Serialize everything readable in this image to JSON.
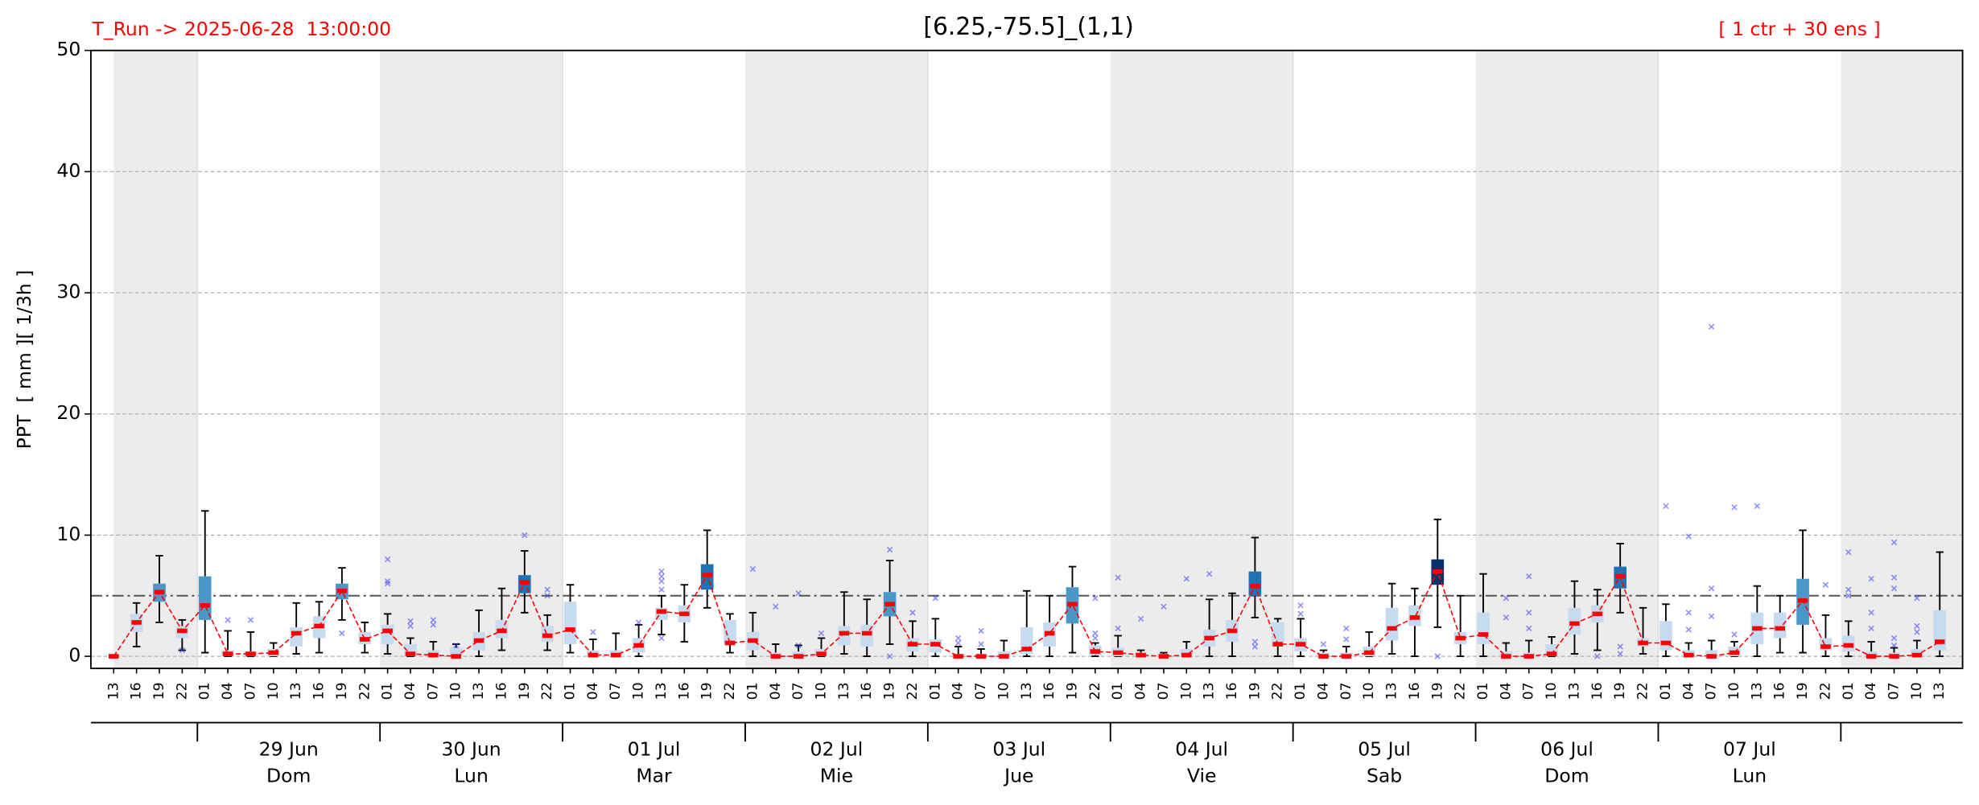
{
  "chart_data": {
    "type": "box",
    "title": "[6.25,-75.5]_(1,1)",
    "annotation_left": "T_Run -> 2025-06-28  13:00:00",
    "annotation_right": "[ 1 ctr + 30 ens ]",
    "ylabel": "PPT  [ mm ][ 1/3h ]",
    "categories": [
      "13",
      "16",
      "19",
      "22",
      "01",
      "04",
      "07",
      "10",
      "13",
      "16",
      "19",
      "22",
      "01",
      "04",
      "07",
      "10",
      "13",
      "16",
      "19",
      "22",
      "01",
      "04",
      "07",
      "10",
      "13",
      "16",
      "19",
      "22",
      "01",
      "04",
      "07",
      "10",
      "13",
      "16",
      "19",
      "22",
      "01",
      "04",
      "07",
      "10",
      "13",
      "16",
      "19",
      "22",
      "01",
      "04",
      "07",
      "10",
      "13",
      "16",
      "19",
      "22",
      "01",
      "04",
      "07",
      "10",
      "13",
      "16",
      "19",
      "22",
      "01",
      "04",
      "07",
      "10",
      "13",
      "16",
      "19",
      "22",
      "01",
      "04",
      "07",
      "10",
      "13",
      "16",
      "19",
      "22",
      "01",
      "04",
      "07",
      "10",
      "13"
    ],
    "day_labels": [
      null,
      "29 Jun",
      "30 Jun",
      "01 Jul",
      "02 Jul",
      "03 Jul",
      "04 Jul",
      "05 Jul",
      "06 Jul",
      "07 Jul",
      null
    ],
    "weekdays": [
      null,
      "Dom",
      "Lun",
      "Mar",
      "Mie",
      "Jue",
      "Vie",
      "Sab",
      "Dom",
      "Lun",
      null
    ],
    "ylim": [
      -1,
      50
    ],
    "yticks": [
      0,
      10,
      20,
      30,
      40,
      50
    ],
    "grid": true,
    "threshold": 5,
    "control": {
      "color": "#ff0000",
      "values": [
        0,
        2.8,
        5.3,
        2.1,
        4.2,
        0.2,
        0.2,
        0.3,
        1.9,
        2.5,
        5.4,
        1.4,
        2.1,
        0.2,
        0.1,
        0,
        1.3,
        2.1,
        6.1,
        1.7,
        2.2,
        0.1,
        0.1,
        0.9,
        3.7,
        3.5,
        6.7,
        1.1,
        1.3,
        0,
        0,
        0.2,
        1.9,
        1.9,
        4.3,
        1.0,
        1.0,
        0,
        0,
        0,
        0.6,
        1.9,
        4.3,
        0.4,
        0.3,
        0.1,
        0,
        0.1,
        1.5,
        2.1,
        5.8,
        1.0,
        1.0,
        0,
        0,
        0.3,
        2.3,
        3.2,
        7.0,
        1.5,
        1.8,
        0,
        0,
        0.2,
        2.7,
        3.5,
        6.6,
        1.1,
        1.1,
        0.1,
        0,
        0.3,
        2.3,
        2.3,
        4.6,
        0.8,
        0.9,
        0,
        0,
        0.1,
        1.2
      ]
    },
    "boxes": {
      "q1": [
        0,
        2.0,
        4.5,
        1.5,
        3.0,
        0,
        0,
        0,
        0.8,
        1.5,
        4.7,
        1.0,
        1.0,
        0,
        0,
        0,
        0.5,
        1.5,
        5.2,
        1.2,
        1.0,
        0,
        0,
        0.3,
        3.0,
        2.8,
        5.5,
        1.0,
        0.5,
        0,
        0,
        0,
        0.9,
        0.8,
        3.3,
        0.4,
        0.3,
        0,
        0,
        0,
        0.2,
        0.8,
        2.7,
        0.1,
        0,
        0,
        0,
        0,
        0.8,
        1.2,
        5.0,
        0.8,
        0.4,
        0,
        0,
        0,
        1.3,
        2.5,
        5.9,
        1.0,
        1.0,
        0,
        0,
        0,
        1.8,
        2.8,
        5.6,
        0.8,
        0.5,
        0,
        0,
        0,
        1.0,
        1.5,
        2.6,
        0.5,
        0.4,
        0,
        0,
        0,
        0.5
      ],
      "q3": [
        0,
        3.5,
        6.0,
        2.5,
        6.6,
        0.5,
        0.4,
        0.6,
        2.4,
        3.3,
        6.0,
        2.0,
        2.6,
        1.0,
        0.5,
        0.7,
        2.0,
        3.0,
        6.7,
        2.5,
        4.5,
        0.5,
        0.5,
        1.5,
        4.0,
        4.2,
        7.6,
        3.0,
        2.0,
        0.3,
        0.4,
        0.6,
        2.5,
        2.6,
        5.3,
        1.5,
        1.4,
        0.2,
        0.2,
        0.4,
        2.4,
        2.8,
        5.7,
        0.9,
        0.7,
        0.3,
        0.2,
        0.6,
        2.2,
        3.0,
        7.0,
        2.8,
        1.5,
        0.3,
        0.3,
        0.8,
        4.0,
        4.2,
        8.0,
        2.0,
        3.6,
        0.4,
        0.3,
        1.0,
        4.0,
        4.2,
        7.4,
        1.5,
        2.9,
        0.5,
        0.5,
        0.8,
        3.6,
        3.6,
        6.4,
        1.5,
        1.7,
        0.4,
        0.3,
        0.6,
        3.8
      ],
      "whislo": [
        0,
        0.8,
        2.8,
        0.5,
        0.3,
        0,
        0,
        0,
        0.2,
        0.3,
        3.0,
        0.3,
        0.2,
        0,
        0,
        0,
        0,
        0.5,
        3.6,
        0.5,
        0.3,
        0,
        0,
        0,
        1.8,
        1.2,
        4.0,
        0.3,
        0,
        0,
        0,
        0,
        0.2,
        0,
        1.0,
        0,
        0,
        0,
        0,
        0,
        0,
        0,
        0.3,
        0,
        0,
        0,
        0,
        0,
        0,
        0,
        3.2,
        0,
        0,
        0,
        0,
        0,
        0.2,
        0,
        2.4,
        0,
        0,
        0,
        0,
        0,
        0.2,
        0.5,
        3.6,
        0.2,
        0,
        0,
        0,
        0,
        0,
        0.3,
        0.3,
        0,
        0,
        0,
        0,
        0,
        0
      ],
      "whishi": [
        0,
        4.4,
        8.3,
        3.0,
        12.0,
        2.1,
        2.0,
        1.1,
        4.4,
        4.5,
        7.3,
        2.8,
        3.5,
        1.5,
        1.2,
        1.0,
        3.8,
        5.6,
        8.7,
        3.4,
        5.9,
        1.4,
        1.9,
        2.6,
        5.0,
        5.9,
        10.4,
        3.5,
        3.6,
        1.0,
        0.9,
        1.5,
        5.3,
        4.7,
        7.9,
        2.9,
        3.1,
        0.8,
        0.6,
        1.3,
        5.4,
        5.0,
        7.4,
        1.1,
        1.7,
        0.5,
        0.3,
        1.2,
        4.7,
        5.2,
        9.8,
        3.1,
        3.1,
        0.5,
        0.8,
        2.0,
        6.0,
        5.6,
        11.3,
        5.0,
        6.8,
        1.1,
        1.3,
        1.6,
        6.2,
        5.5,
        9.3,
        4.0,
        4.3,
        1.1,
        1.3,
        1.2,
        5.8,
        5.0,
        10.4,
        3.4,
        2.9,
        1.2,
        0.7,
        1.3,
        8.6
      ],
      "colors": [
        "#c6dbef",
        "#c6dbef",
        "#4a98c9",
        "#c6dbef",
        "#4a98c9",
        "#c6dbef",
        "#c6dbef",
        "#c6dbef",
        "#c6dbef",
        "#c6dbef",
        "#4a98c9",
        "#c6dbef",
        "#c6dbef",
        "#c6dbef",
        "#c6dbef",
        "#c6dbef",
        "#c6dbef",
        "#c6dbef",
        "#2171b5",
        "#c6dbef",
        "#c6dbef",
        "#c6dbef",
        "#c6dbef",
        "#c6dbef",
        "#c6dbef",
        "#c6dbef",
        "#2171b5",
        "#c6dbef",
        "#c6dbef",
        "#c6dbef",
        "#c6dbef",
        "#c6dbef",
        "#c6dbef",
        "#c6dbef",
        "#4a98c9",
        "#c6dbef",
        "#c6dbef",
        "#c6dbef",
        "#c6dbef",
        "#c6dbef",
        "#c6dbef",
        "#c6dbef",
        "#4a98c9",
        "#c6dbef",
        "#c6dbef",
        "#c6dbef",
        "#c6dbef",
        "#c6dbef",
        "#c6dbef",
        "#c6dbef",
        "#2171b5",
        "#c6dbef",
        "#c6dbef",
        "#c6dbef",
        "#c6dbef",
        "#c6dbef",
        "#c6dbef",
        "#c6dbef",
        "#08306b",
        "#c6dbef",
        "#c6dbef",
        "#c6dbef",
        "#c6dbef",
        "#c6dbef",
        "#c6dbef",
        "#c6dbef",
        "#2171b5",
        "#c6dbef",
        "#c6dbef",
        "#c6dbef",
        "#c6dbef",
        "#c6dbef",
        "#c6dbef",
        "#c6dbef",
        "#4a98c9",
        "#c6dbef",
        "#c6dbef",
        "#c6dbef",
        "#c6dbef",
        "#c6dbef",
        "#c6dbef"
      ],
      "flier_color": "#3333ff",
      "fliers": [
        [],
        [],
        [],
        [
          0.5
        ],
        [],
        [
          3.0
        ],
        [
          3.0
        ],
        [],
        [],
        [],
        [
          1.9
        ],
        [],
        [
          6.0,
          6.2,
          8.0
        ],
        [
          2.5,
          2.9
        ],
        [
          2.6,
          3.0
        ],
        [
          0.9
        ],
        [],
        [],
        [
          10.0
        ],
        [
          5.0,
          5.5
        ],
        [],
        [
          2.0
        ],
        [],
        [
          2.8
        ],
        [
          1.5,
          5.5,
          6.2,
          6.6,
          7.0
        ],
        [],
        [],
        [],
        [
          7.2
        ],
        [
          4.1
        ],
        [
          0.9,
          5.2
        ],
        [
          1.9
        ],
        [],
        [],
        [
          8.8,
          0.0
        ],
        [
          3.6
        ],
        [
          4.8
        ],
        [
          1.1,
          1.5
        ],
        [
          1.0,
          2.1
        ],
        [],
        [],
        [],
        [],
        [
          1.5,
          1.9,
          4.8
        ],
        [
          2.3,
          6.5
        ],
        [
          3.1
        ],
        [
          4.1
        ],
        [
          6.4
        ],
        [
          6.8
        ],
        [],
        [
          0.8,
          1.2
        ],
        [],
        [
          3.5,
          4.2
        ],
        [
          1.0
        ],
        [
          1.4,
          2.3
        ],
        [],
        [],
        [],
        [
          0.0
        ],
        [],
        [],
        [
          3.2,
          4.8
        ],
        [
          2.3,
          3.6,
          6.6
        ],
        [],
        [],
        [
          0.0
        ],
        [
          0.2,
          0.8
        ],
        [],
        [
          12.4
        ],
        [
          2.2,
          3.6,
          9.9
        ],
        [
          3.3,
          5.6,
          27.2
        ],
        [
          1.8,
          12.3
        ],
        [
          12.4
        ],
        [],
        [],
        [
          5.9
        ],
        [
          5.0,
          5.5,
          8.6
        ],
        [
          2.3,
          3.6,
          6.4
        ],
        [
          0.9,
          1.5,
          5.6,
          6.5,
          9.4
        ],
        [
          2.0,
          2.5,
          4.8
        ],
        []
      ]
    }
  }
}
